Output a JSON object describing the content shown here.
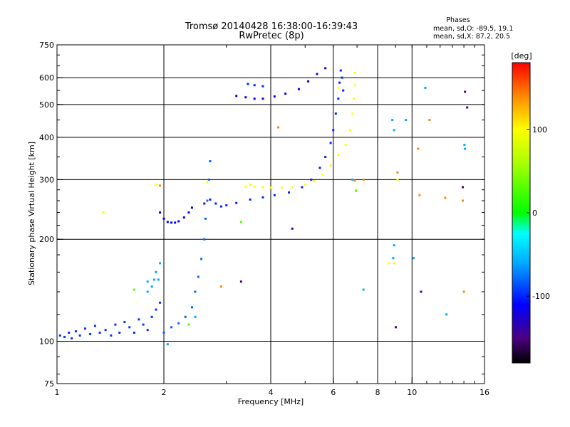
{
  "chart_data": {
    "type": "scatter",
    "title": "Tromsø 20140428 16:38:00-16:39:43",
    "subtitle": "RwPretec (8p)",
    "phase_header": "Phases",
    "phase_stats": [
      "mean, sd,O: -89.5, 19.1",
      "mean, sd,X:  87.2, 20.5"
    ],
    "xlabel": "Frequency [MHz]",
    "ylabel": "Stationary phase Virtual Height [km]",
    "x_scale": "log",
    "y_scale": "log",
    "xlim": [
      1,
      16
    ],
    "ylim": [
      75,
      750
    ],
    "x_ticks": [
      {
        "value": 1,
        "label": "1"
      },
      {
        "value": 2,
        "label": "2"
      },
      {
        "value": 4,
        "label": "4"
      },
      {
        "value": 6,
        "label": "6"
      },
      {
        "value": 8,
        "label": "8"
      },
      {
        "value": 10,
        "label": "10"
      },
      {
        "value": 16,
        "label": "16"
      }
    ],
    "y_ticks": [
      {
        "value": 75,
        "label": "75"
      },
      {
        "value": 100,
        "label": "100"
      },
      {
        "value": 200,
        "label": "200"
      },
      {
        "value": 300,
        "label": "300"
      },
      {
        "value": 400,
        "label": "400"
      },
      {
        "value": 500,
        "label": "500"
      },
      {
        "value": 600,
        "label": "600"
      },
      {
        "value": 750,
        "label": "750"
      }
    ],
    "grid_x": [
      2,
      4,
      6,
      8,
      10
    ],
    "grid_y": [
      100,
      200,
      300,
      400,
      500,
      600
    ],
    "grid": true,
    "colorbar": {
      "label": "[deg]",
      "range": [
        -180,
        180
      ],
      "ticks": [
        {
          "value": 100,
          "label": "100"
        },
        {
          "value": 0,
          "label": "0"
        },
        {
          "value": -100,
          "label": "-100"
        }
      ],
      "stops": [
        {
          "value": -180,
          "color": "#000000"
        },
        {
          "value": -150,
          "color": "#4b0082"
        },
        {
          "value": -110,
          "color": "#0000ff"
        },
        {
          "value": -60,
          "color": "#00aaff"
        },
        {
          "value": -25,
          "color": "#00ffff"
        },
        {
          "value": 0,
          "color": "#00ff00"
        },
        {
          "value": 60,
          "color": "#aaff00"
        },
        {
          "value": 100,
          "color": "#ffff00"
        },
        {
          "value": 140,
          "color": "#ff8800"
        },
        {
          "value": 180,
          "color": "#ff0000"
        }
      ]
    },
    "series": [
      {
        "phase": -95,
        "points": [
          [
            1.02,
            104
          ],
          [
            1.05,
            103
          ],
          [
            1.08,
            106
          ],
          [
            1.1,
            102
          ],
          [
            1.13,
            107
          ],
          [
            1.16,
            104
          ],
          [
            1.2,
            109
          ],
          [
            1.24,
            105
          ],
          [
            1.28,
            111
          ],
          [
            1.32,
            106
          ],
          [
            1.37,
            108
          ],
          [
            1.42,
            104
          ],
          [
            1.46,
            112
          ],
          [
            1.5,
            106
          ],
          [
            1.55,
            114
          ],
          [
            1.6,
            110
          ],
          [
            1.65,
            106
          ],
          [
            1.7,
            116
          ],
          [
            1.75,
            112
          ],
          [
            1.8,
            108
          ],
          [
            1.85,
            118
          ],
          [
            1.9,
            124
          ],
          [
            1.95,
            130
          ]
        ]
      },
      {
        "phase": -60,
        "points": [
          [
            1.8,
            140
          ],
          [
            1.85,
            145
          ],
          [
            1.88,
            152
          ],
          [
            1.9,
            160
          ],
          [
            1.93,
            152
          ],
          [
            1.95,
            170
          ]
        ]
      },
      {
        "phase": -110,
        "points": [
          [
            1.95,
            240
          ],
          [
            2.0,
            230
          ],
          [
            2.05,
            225
          ],
          [
            2.1,
            224
          ],
          [
            2.15,
            224
          ],
          [
            2.2,
            226
          ],
          [
            2.28,
            232
          ],
          [
            2.35,
            240
          ],
          [
            2.4,
            248
          ]
        ]
      },
      {
        "phase": -80,
        "points": [
          [
            2.0,
            106
          ],
          [
            2.1,
            110
          ],
          [
            2.2,
            113
          ],
          [
            2.3,
            118
          ],
          [
            2.4,
            126
          ],
          [
            2.45,
            140
          ],
          [
            2.5,
            155
          ],
          [
            2.55,
            175
          ],
          [
            2.6,
            200
          ],
          [
            2.62,
            230
          ],
          [
            2.65,
            260
          ],
          [
            2.68,
            300
          ],
          [
            2.7,
            340
          ]
        ]
      },
      {
        "phase": -100,
        "points": [
          [
            2.7,
            262
          ],
          [
            2.8,
            255
          ],
          [
            2.9,
            250
          ],
          [
            3.0,
            252
          ],
          [
            3.2,
            256
          ],
          [
            3.5,
            262
          ],
          [
            3.8,
            266
          ],
          [
            4.1,
            270
          ],
          [
            4.5,
            275
          ],
          [
            4.9,
            285
          ],
          [
            5.2,
            300
          ],
          [
            5.5,
            325
          ],
          [
            5.7,
            350
          ],
          [
            5.9,
            385
          ],
          [
            6.0,
            420
          ],
          [
            6.1,
            470
          ],
          [
            6.2,
            520
          ],
          [
            6.25,
            580
          ],
          [
            6.3,
            630
          ],
          [
            6.35,
            600
          ],
          [
            6.4,
            550
          ]
        ]
      },
      {
        "phase": 100,
        "points": [
          [
            3.6,
            286
          ],
          [
            3.8,
            285
          ],
          [
            4.0,
            284
          ],
          [
            4.3,
            284
          ],
          [
            4.6,
            285
          ],
          [
            5.0,
            290
          ],
          [
            5.3,
            297
          ],
          [
            5.6,
            310
          ],
          [
            5.9,
            330
          ],
          [
            6.2,
            355
          ],
          [
            6.5,
            380
          ],
          [
            6.7,
            420
          ],
          [
            6.8,
            470
          ],
          [
            6.85,
            520
          ],
          [
            6.9,
            570
          ],
          [
            6.9,
            620
          ]
        ]
      },
      {
        "phase": -115,
        "points": [
          [
            3.2,
            530
          ],
          [
            3.4,
            525
          ],
          [
            3.6,
            520
          ],
          [
            3.8,
            520
          ],
          [
            4.1,
            528
          ],
          [
            4.4,
            538
          ],
          [
            4.8,
            555
          ],
          [
            5.1,
            585
          ],
          [
            5.4,
            615
          ],
          [
            5.7,
            640
          ]
        ]
      },
      {
        "phase": -100,
        "points": [
          [
            3.45,
            575
          ],
          [
            3.6,
            570
          ],
          [
            3.8,
            566
          ]
        ]
      },
      {
        "phase": 100,
        "points": [
          [
            3.5,
            290
          ],
          [
            3.4,
            286
          ],
          [
            1.35,
            240
          ],
          [
            1.9,
            290
          ],
          [
            2.65,
            295
          ],
          [
            6.95,
            280
          ],
          [
            9.1,
            300
          ],
          [
            6.2,
            560
          ],
          [
            8.6,
            170
          ],
          [
            8.9,
            170
          ]
        ]
      },
      {
        "phase": -60,
        "points": [
          [
            1.8,
            150
          ],
          [
            2.05,
            98
          ],
          [
            2.45,
            118
          ],
          [
            8.9,
            192
          ],
          [
            8.85,
            176
          ],
          [
            10.1,
            176
          ],
          [
            7.3,
            142
          ],
          [
            9.6,
            450
          ],
          [
            10.9,
            560
          ],
          [
            12.5,
            120
          ],
          [
            14.1,
            370
          ],
          [
            14.05,
            380
          ],
          [
            8.8,
            450
          ],
          [
            8.9,
            420
          ],
          [
            6.8,
            300
          ]
        ]
      },
      {
        "phase": 140,
        "points": [
          [
            9.1,
            315
          ],
          [
            10.4,
            370
          ],
          [
            10.5,
            270
          ],
          [
            12.4,
            265
          ],
          [
            13.9,
            260
          ],
          [
            14.0,
            140
          ],
          [
            11.2,
            450
          ],
          [
            2.9,
            145
          ],
          [
            1.95,
            288
          ],
          [
            4.2,
            428
          ],
          [
            6.9,
            298
          ],
          [
            7.3,
            300
          ]
        ]
      },
      {
        "phase": -150,
        "points": [
          [
            9.0,
            110
          ],
          [
            10.6,
            140
          ],
          [
            13.9,
            285
          ],
          [
            14.1,
            545
          ],
          [
            14.3,
            490
          ],
          [
            3.3,
            150
          ],
          [
            2.6,
            255
          ],
          [
            4.6,
            215
          ]
        ]
      },
      {
        "phase": 30,
        "points": [
          [
            1.65,
            142
          ],
          [
            3.3,
            225
          ],
          [
            2.35,
            112
          ],
          [
            6.95,
            278
          ]
        ]
      }
    ]
  }
}
